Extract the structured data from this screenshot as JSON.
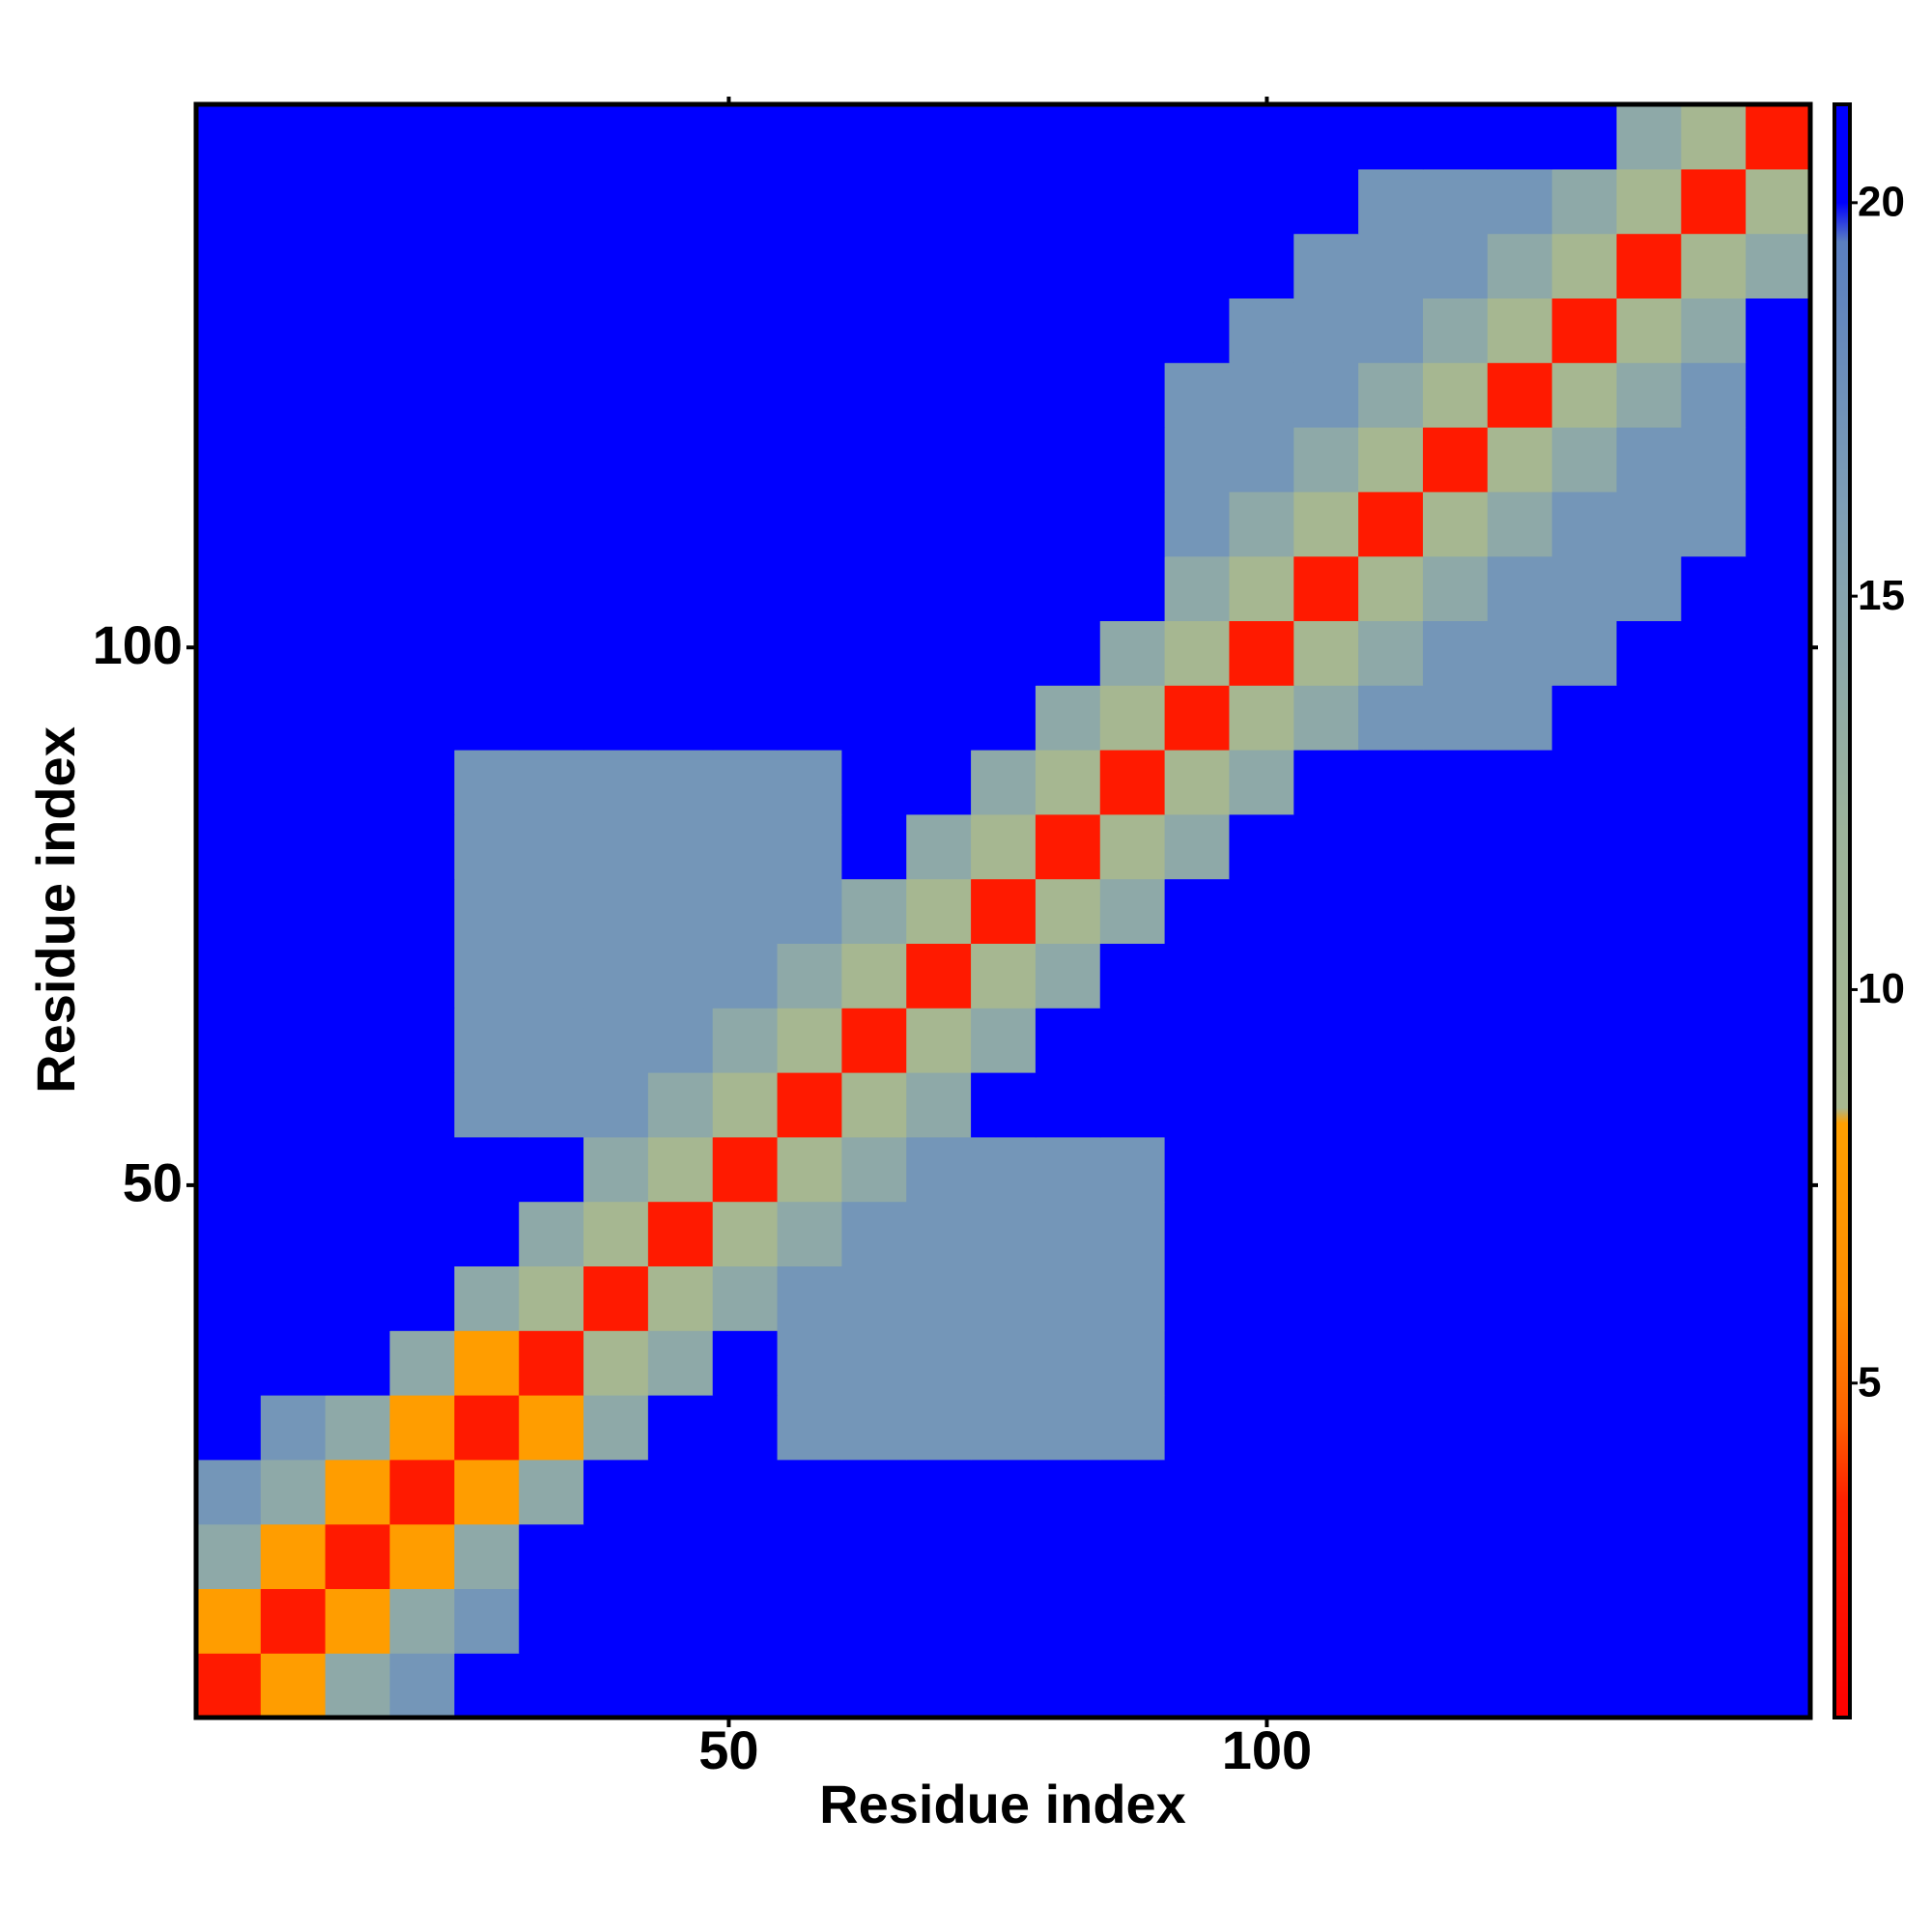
{
  "chart_data": {
    "type": "heatmap",
    "xlabel": "Residue index",
    "ylabel": "Residue index",
    "x": [
      3.5,
      9.5,
      15.5,
      21.5,
      27.5,
      33.5,
      39.5,
      45.5,
      51.5,
      57.5,
      63.5,
      69.5,
      75.5,
      81.5,
      87.5,
      93.5,
      99.5,
      105.5,
      111.5,
      117.5,
      123.5,
      129.5,
      135.5,
      141.5,
      147.5
    ],
    "y": [
      3.5,
      9.5,
      15.5,
      21.5,
      27.5,
      33.5,
      39.5,
      45.5,
      51.5,
      57.5,
      63.5,
      69.5,
      75.5,
      81.5,
      87.5,
      93.5,
      99.5,
      105.5,
      111.5,
      117.5,
      123.5,
      129.5,
      135.5,
      141.5,
      147.5
    ],
    "values": [
      [
        3,
        8,
        14,
        17,
        21,
        21,
        21,
        21,
        21,
        21,
        21,
        21,
        21,
        21,
        21,
        21,
        21,
        21,
        21,
        21,
        21,
        21,
        21,
        21,
        21
      ],
      [
        8,
        3,
        8,
        14,
        17,
        21,
        21,
        21,
        21,
        21,
        21,
        21,
        21,
        21,
        21,
        21,
        21,
        21,
        21,
        21,
        21,
        21,
        21,
        21,
        21
      ],
      [
        14,
        8,
        3,
        8,
        14,
        21,
        21,
        21,
        21,
        21,
        21,
        21,
        21,
        21,
        21,
        21,
        21,
        21,
        21,
        21,
        21,
        21,
        21,
        21,
        21
      ],
      [
        17,
        14,
        8,
        3,
        8,
        14,
        21,
        21,
        21,
        21,
        21,
        21,
        21,
        21,
        21,
        21,
        21,
        21,
        21,
        21,
        21,
        21,
        21,
        21,
        21
      ],
      [
        21,
        17,
        14,
        8,
        3,
        8,
        14,
        21,
        21,
        17,
        17,
        17,
        17,
        17,
        17,
        21,
        21,
        21,
        21,
        21,
        21,
        21,
        21,
        21,
        21
      ],
      [
        21,
        21,
        21,
        14,
        8,
        3,
        9,
        14,
        21,
        17,
        17,
        17,
        17,
        17,
        17,
        21,
        21,
        21,
        21,
        21,
        21,
        21,
        21,
        21,
        21
      ],
      [
        21,
        21,
        21,
        21,
        14,
        9,
        3,
        9,
        14,
        17,
        17,
        17,
        17,
        17,
        17,
        21,
        21,
        21,
        21,
        21,
        21,
        21,
        21,
        21,
        21
      ],
      [
        21,
        21,
        21,
        21,
        21,
        14,
        9,
        3,
        9,
        14,
        17,
        17,
        17,
        17,
        17,
        21,
        21,
        21,
        21,
        21,
        21,
        21,
        21,
        21,
        21
      ],
      [
        21,
        21,
        21,
        21,
        21,
        21,
        14,
        9,
        3,
        9,
        14,
        17,
        17,
        17,
        17,
        21,
        21,
        21,
        21,
        21,
        21,
        21,
        21,
        21,
        21
      ],
      [
        21,
        21,
        21,
        21,
        17,
        17,
        17,
        14,
        9,
        3,
        9,
        14,
        21,
        21,
        21,
        21,
        21,
        21,
        21,
        21,
        21,
        21,
        21,
        21,
        21
      ],
      [
        21,
        21,
        21,
        21,
        17,
        17,
        17,
        17,
        14,
        9,
        3,
        9,
        14,
        21,
        21,
        21,
        21,
        21,
        21,
        21,
        21,
        21,
        21,
        21,
        21
      ],
      [
        21,
        21,
        21,
        21,
        17,
        17,
        17,
        17,
        17,
        14,
        9,
        3,
        9,
        14,
        21,
        21,
        21,
        21,
        21,
        21,
        21,
        21,
        21,
        21,
        21
      ],
      [
        21,
        21,
        21,
        21,
        17,
        17,
        17,
        17,
        17,
        17,
        14,
        9,
        3,
        9,
        14,
        21,
        21,
        21,
        21,
        21,
        21,
        21,
        21,
        21,
        21
      ],
      [
        21,
        21,
        21,
        21,
        17,
        17,
        17,
        17,
        17,
        17,
        21,
        14,
        9,
        3,
        9,
        14,
        21,
        21,
        21,
        21,
        21,
        21,
        21,
        21,
        21
      ],
      [
        21,
        21,
        21,
        21,
        17,
        17,
        17,
        17,
        17,
        17,
        21,
        21,
        14,
        9,
        3,
        9,
        14,
        21,
        21,
        21,
        21,
        21,
        21,
        21,
        21
      ],
      [
        21,
        21,
        21,
        21,
        21,
        21,
        21,
        21,
        21,
        21,
        21,
        21,
        21,
        14,
        9,
        3,
        9,
        14,
        17,
        17,
        17,
        21,
        21,
        21,
        21
      ],
      [
        21,
        21,
        21,
        21,
        21,
        21,
        21,
        21,
        21,
        21,
        21,
        21,
        21,
        21,
        14,
        9,
        3,
        9,
        14,
        17,
        17,
        17,
        21,
        21,
        21
      ],
      [
        21,
        21,
        21,
        21,
        21,
        21,
        21,
        21,
        21,
        21,
        21,
        21,
        21,
        21,
        21,
        14,
        9,
        3,
        9,
        14,
        17,
        17,
        17,
        21,
        21
      ],
      [
        21,
        21,
        21,
        21,
        21,
        21,
        21,
        21,
        21,
        21,
        21,
        21,
        21,
        21,
        21,
        17,
        14,
        9,
        3,
        9,
        14,
        17,
        17,
        17,
        21
      ],
      [
        21,
        21,
        21,
        21,
        21,
        21,
        21,
        21,
        21,
        21,
        21,
        21,
        21,
        21,
        21,
        17,
        17,
        14,
        9,
        3,
        9,
        14,
        17,
        17,
        21
      ],
      [
        21,
        21,
        21,
        21,
        21,
        21,
        21,
        21,
        21,
        21,
        21,
        21,
        21,
        21,
        21,
        17,
        17,
        17,
        14,
        9,
        3,
        9,
        14,
        17,
        21
      ],
      [
        21,
        21,
        21,
        21,
        21,
        21,
        21,
        21,
        21,
        21,
        21,
        21,
        21,
        21,
        21,
        21,
        17,
        17,
        17,
        14,
        9,
        3,
        9,
        14,
        21
      ],
      [
        21,
        21,
        21,
        21,
        21,
        21,
        21,
        21,
        21,
        21,
        21,
        21,
        21,
        21,
        21,
        21,
        21,
        17,
        17,
        17,
        14,
        9,
        3,
        9,
        14
      ],
      [
        21,
        21,
        21,
        21,
        21,
        21,
        21,
        21,
        21,
        21,
        21,
        21,
        21,
        21,
        21,
        21,
        21,
        21,
        17,
        17,
        17,
        14,
        9,
        3,
        9
      ],
      [
        21,
        21,
        21,
        21,
        21,
        21,
        21,
        21,
        21,
        21,
        21,
        21,
        21,
        21,
        21,
        21,
        21,
        21,
        21,
        21,
        21,
        21,
        14,
        9,
        3
      ]
    ],
    "xlim": [
      0.5,
      150.5
    ],
    "xticks": [
      50,
      100
    ],
    "ylim": [
      0.5,
      150.5
    ],
    "yticks": [
      50,
      100
    ],
    "clim": [
      0.75,
      21.25
    ],
    "cticks": [
      5,
      10,
      15,
      20
    ],
    "colorscale": [
      [
        0.75,
        "#ff0000"
      ],
      [
        3.5,
        "#ff2000"
      ],
      [
        4.5,
        "#ff6000"
      ],
      [
        6,
        "#ff8c00"
      ],
      [
        8.3,
        "#ffa000"
      ],
      [
        8.5,
        "#a8b890"
      ],
      [
        12,
        "#9cb39a"
      ],
      [
        16,
        "#7f9fb5"
      ],
      [
        19.5,
        "#5a7fc0"
      ],
      [
        20,
        "#0000ff"
      ],
      [
        21.25,
        "#0000ff"
      ]
    ]
  }
}
